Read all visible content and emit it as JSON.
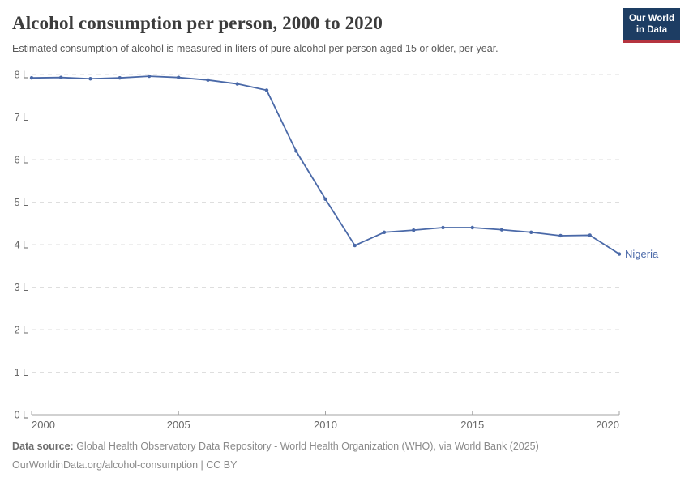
{
  "header": {
    "title": "Alcohol consumption per person, 2000 to 2020",
    "subtitle": "Estimated consumption of alcohol is measured in liters of pure alcohol per person aged 15 or older, per year.",
    "logo": {
      "line1": "Our World",
      "line2": "in Data",
      "bg_color": "#1d3d63",
      "accent_color": "#b5343f"
    }
  },
  "chart_data": {
    "type": "line",
    "title": "Alcohol consumption per person, 2000 to 2020",
    "xlabel": "",
    "ylabel": "liters of pure alcohol per person",
    "xlim": [
      2000,
      2020
    ],
    "ylim": [
      0,
      8
    ],
    "grid": "horizontal-dashed",
    "legend_position": "end-of-line-label",
    "x_ticks": [
      2000,
      2005,
      2010,
      2015,
      2020
    ],
    "y_ticks": [
      0,
      1,
      2,
      3,
      4,
      5,
      6,
      7,
      8
    ],
    "y_tick_labels": [
      "0 L",
      "1 L",
      "2 L",
      "3 L",
      "4 L",
      "5 L",
      "6 L",
      "7 L",
      "8 L"
    ],
    "series": [
      {
        "name": "Nigeria",
        "color": "#4a69a8",
        "x": [
          2000,
          2001,
          2002,
          2003,
          2004,
          2005,
          2006,
          2007,
          2008,
          2009,
          2010,
          2011,
          2012,
          2013,
          2014,
          2015,
          2016,
          2017,
          2018,
          2019,
          2020
        ],
        "values": [
          7.92,
          7.93,
          7.9,
          7.92,
          7.96,
          7.93,
          7.87,
          7.78,
          7.63,
          6.2,
          5.07,
          3.98,
          4.29,
          4.34,
          4.4,
          4.4,
          4.35,
          4.29,
          4.21,
          4.22,
          3.78
        ]
      }
    ],
    "colors": {
      "gridline": "#dedede",
      "axis": "#a3a3a3",
      "tick_label": "#696969"
    }
  },
  "footer": {
    "datasource_label": "Data source:",
    "datasource_text": " Global Health Observatory Data Repository - World Health Organization (WHO), via World Bank (2025)",
    "link_text": "OurWorldinData.org/alcohol-consumption",
    "license_text": " | CC BY"
  }
}
